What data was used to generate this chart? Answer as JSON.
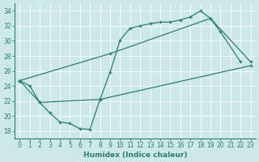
{
  "bg_color": "#cce8e8",
  "line_color": "#2e7d6e",
  "grid_color": "#b8d8d8",
  "xlabel": "Humidex (Indice chaleur)",
  "xlim": [
    -0.5,
    23.5
  ],
  "ylim": [
    17,
    35
  ],
  "yticks": [
    18,
    20,
    22,
    24,
    26,
    28,
    30,
    32,
    34
  ],
  "xticks": [
    0,
    1,
    2,
    3,
    4,
    5,
    6,
    7,
    8,
    9,
    10,
    11,
    12,
    13,
    14,
    15,
    16,
    17,
    18,
    19,
    20,
    21,
    22,
    23
  ],
  "line1_x": [
    0,
    1,
    2,
    3,
    4,
    5,
    6,
    7,
    8,
    9,
    10,
    11,
    12,
    13,
    14,
    15,
    16,
    17,
    18,
    19,
    20,
    22,
    23
  ],
  "line1_y": [
    24.7,
    24.0,
    21.8,
    20.4,
    19.2,
    19.0,
    18.3,
    18.2,
    22.2,
    25.8,
    30.1,
    31.7,
    32.0,
    32.3,
    32.5,
    32.5,
    32.8,
    33.2,
    34.0,
    33.0,
    31.2,
    27.2,
    null
  ],
  "line2_x": [
    0,
    9,
    19,
    23
  ],
  "line2_y": [
    24.7,
    28.3,
    33.0,
    27.2
  ],
  "line3_x": [
    0,
    2,
    8,
    23
  ],
  "line3_y": [
    24.7,
    21.8,
    22.2,
    26.7
  ]
}
